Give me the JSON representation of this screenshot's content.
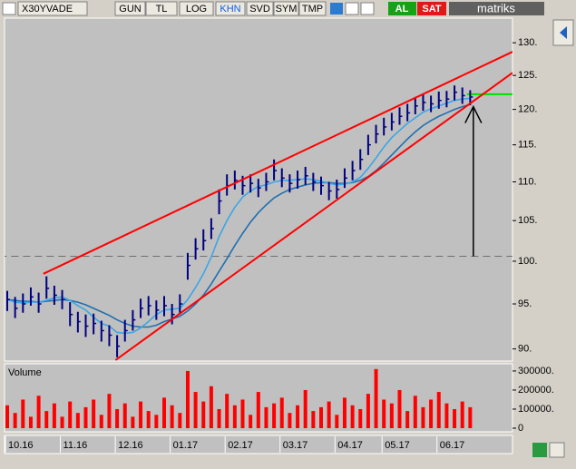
{
  "toolbar": {
    "symbol": "X30YVADE",
    "buttons": [
      "GUN",
      "TL",
      "LOG",
      "KHN",
      "SVD",
      "SYM",
      "TMP"
    ],
    "buy": "AL",
    "sell": "SAT",
    "brand": "matriks"
  },
  "chart_data": {
    "type": "ohlc",
    "log_scale": true,
    "categories": [
      "10.16",
      null,
      null,
      null,
      null,
      null,
      null,
      "11.16",
      null,
      null,
      null,
      null,
      null,
      null,
      "12.16",
      null,
      null,
      null,
      null,
      null,
      null,
      "01.17",
      null,
      null,
      null,
      null,
      null,
      null,
      "02.17",
      null,
      null,
      null,
      null,
      null,
      null,
      "03.17",
      null,
      null,
      null,
      null,
      null,
      null,
      "04.17",
      null,
      null,
      null,
      null,
      null,
      "05.17",
      null,
      null,
      null,
      null,
      null,
      null,
      "06.17",
      null,
      null,
      null,
      null
    ],
    "close": [
      95.5,
      94.5,
      95,
      95.8,
      95,
      96.8,
      96,
      95.5,
      93.8,
      93,
      92.5,
      92.8,
      92,
      91.5,
      90.3,
      92,
      93.2,
      94.5,
      94.8,
      94.3,
      94.8,
      93.8,
      95,
      99.5,
      101.5,
      102.5,
      104,
      107.5,
      109.5,
      110.2,
      109.5,
      109.8,
      109.2,
      110,
      111.5,
      110.5,
      109.8,
      110.3,
      110.8,
      110,
      109.5,
      108.8,
      109,
      110.5,
      111.5,
      113,
      115,
      116.5,
      117.5,
      118.2,
      119,
      119.5,
      120.5,
      121,
      120.8,
      121.3,
      121.5,
      122.5,
      122,
      121.8
    ],
    "high": [
      96.5,
      95.8,
      96.2,
      96.9,
      96.3,
      98.2,
      97.1,
      96.6,
      95.2,
      94.1,
      93.8,
      93.9,
      93.1,
      92.6,
      91.5,
      93.2,
      94.3,
      95.6,
      95.9,
      95.4,
      95.9,
      95,
      96.1,
      101,
      102.8,
      103.9,
      105.3,
      109,
      111,
      111.5,
      110.8,
      111,
      110.4,
      111.2,
      113,
      111.8,
      111,
      111.5,
      112,
      111.2,
      110.7,
      110,
      110.3,
      111.8,
      112.8,
      114.4,
      116.4,
      117.8,
      118.8,
      119.5,
      120.3,
      120.8,
      121.8,
      122.3,
      122,
      122.6,
      122.7,
      123.5,
      123.2,
      122.8
    ],
    "low": [
      94.2,
      93.4,
      94,
      94.8,
      94,
      95.6,
      94.9,
      94.4,
      92.5,
      91.8,
      91.3,
      91.6,
      90.8,
      90.3,
      89.1,
      90.8,
      92,
      93.4,
      93.7,
      93.2,
      93.6,
      92.7,
      93.8,
      97.8,
      100.2,
      101.3,
      102.7,
      105.8,
      108.2,
      109,
      108.3,
      108.6,
      108,
      108.8,
      110.2,
      109.3,
      108.6,
      109.1,
      109.6,
      108.8,
      108.3,
      107.6,
      107.8,
      109.2,
      110.2,
      111.6,
      113.6,
      115.2,
      116.3,
      117,
      117.8,
      118.3,
      119.3,
      119.8,
      119.6,
      120.1,
      120.3,
      121.3,
      120.8,
      120.6
    ],
    "bar_color": "#000080",
    "ma_short": [
      95.5,
      95.2,
      95.1,
      95.2,
      95.2,
      95.4,
      95.7,
      95.8,
      95.4,
      94.8,
      94.3,
      93.5,
      92.8,
      92.5,
      91.8,
      91.7,
      91.8,
      92.3,
      93,
      93.8,
      94.3,
      94.4,
      94.5,
      95.5,
      96.9,
      98.5,
      100.5,
      103,
      105,
      106.7,
      108,
      108.8,
      109.4,
      109.6,
      110,
      110.2,
      110.2,
      110.3,
      110.4,
      110.3,
      110.1,
      109.8,
      109.6,
      109.7,
      110,
      110.6,
      111.8,
      113.2,
      114.7,
      116,
      117,
      118,
      118.8,
      119.6,
      120.1,
      120.5,
      120.9,
      121.3,
      121.5,
      121.6
    ],
    "ma_short_color": "#3aa6e8",
    "ma_long": [
      95.5,
      95.4,
      95.3,
      95.3,
      95.2,
      95.3,
      95.4,
      95.5,
      95.4,
      95.2,
      94.9,
      94.5,
      94.1,
      93.7,
      93.2,
      92.8,
      92.5,
      92.4,
      92.4,
      92.6,
      93,
      93.3,
      93.6,
      94.2,
      95,
      96,
      97.3,
      98.8,
      100.3,
      101.9,
      103.4,
      104.8,
      106,
      107,
      107.9,
      108.5,
      109,
      109.3,
      109.6,
      109.8,
      109.9,
      109.9,
      109.8,
      109.8,
      109.9,
      110.2,
      110.7,
      111.5,
      112.5,
      113.6,
      114.7,
      115.8,
      116.8,
      117.7,
      118.4,
      119,
      119.5,
      120,
      120.4,
      120.7
    ],
    "ma_long_color": "#1f6fb0",
    "ylim": [
      88.7,
      133.9
    ],
    "yticks": [
      {
        "value": 130,
        "label": "130."
      },
      {
        "value": 125,
        "label": "125."
      },
      {
        "value": 120,
        "label": "120."
      },
      {
        "value": 115,
        "label": "115."
      },
      {
        "value": 110,
        "label": "110."
      },
      {
        "value": 105,
        "label": "105."
      },
      {
        "value": 100,
        "label": "100."
      },
      {
        "value": 95,
        "label": "95."
      },
      {
        "value": 90,
        "label": "90."
      }
    ],
    "trendlines": [
      {
        "x": [
          4.6,
          64.4
        ],
        "y": [
          98.5,
          128.6
        ],
        "color": "#ff0000"
      },
      {
        "x": [
          13.8,
          64.4
        ],
        "y": [
          88.8,
          125.4
        ],
        "color": "#ff0000"
      }
    ],
    "hlines": [
      {
        "y": 100.6,
        "x": [
          -1,
          64.4
        ],
        "color": "#707070",
        "style": "dashed"
      },
      {
        "y": 122.2,
        "x": [
          58.6,
          64.4
        ],
        "color": "#00e000",
        "style": "solid"
      }
    ],
    "arrow": {
      "x": 59.4,
      "from": 100.6,
      "to": 120.4,
      "color": "#000000"
    },
    "volume_label": "Volume",
    "volume": [
      120000,
      80000,
      150000,
      60000,
      170000,
      90000,
      130000,
      60000,
      140000,
      80000,
      110000,
      150000,
      70000,
      180000,
      100000,
      130000,
      60000,
      140000,
      90000,
      70000,
      160000,
      120000,
      80000,
      300000,
      190000,
      140000,
      220000,
      100000,
      180000,
      120000,
      150000,
      70000,
      190000,
      110000,
      130000,
      160000,
      80000,
      120000,
      200000,
      90000,
      110000,
      140000,
      70000,
      160000,
      120000,
      100000,
      180000,
      310000,
      150000,
      130000,
      200000,
      90000,
      170000,
      110000,
      150000,
      190000,
      130000,
      100000,
      140000,
      110000
    ],
    "volume_color": "#ff0000",
    "vlim": [
      0,
      333000
    ],
    "vticks": [
      {
        "value": 300000,
        "label": "300000."
      },
      {
        "value": 200000,
        "label": "200000."
      },
      {
        "value": 100000,
        "label": "100000."
      },
      0
    ]
  }
}
